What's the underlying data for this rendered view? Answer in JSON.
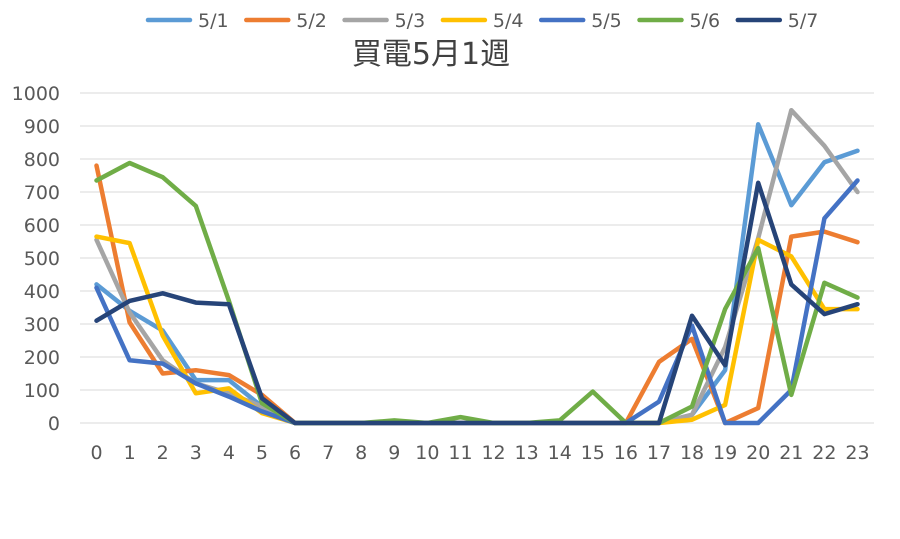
{
  "chart_data": {
    "type": "line",
    "title": "買電5月1週",
    "xlabel": "",
    "ylabel": "",
    "categories": [
      "0",
      "1",
      "2",
      "3",
      "4",
      "5",
      "6",
      "7",
      "8",
      "9",
      "10",
      "11",
      "12",
      "13",
      "14",
      "15",
      "16",
      "17",
      "18",
      "19",
      "20",
      "21",
      "22",
      "23"
    ],
    "yticks": [
      "0",
      "100",
      "200",
      "300",
      "400",
      "500",
      "600",
      "700",
      "800",
      "900",
      "1000"
    ],
    "ylim": [
      0,
      1000
    ],
    "grid": true,
    "legend_position": "top",
    "series": [
      {
        "name": "5/1",
        "color": "#5B9BD5",
        "values": [
          420,
          340,
          280,
          130,
          130,
          50,
          0,
          0,
          0,
          0,
          0,
          0,
          0,
          0,
          0,
          0,
          0,
          0,
          25,
          160,
          905,
          660,
          790,
          825
        ]
      },
      {
        "name": "5/2",
        "color": "#ED7D31",
        "values": [
          780,
          305,
          150,
          160,
          145,
          85,
          0,
          0,
          0,
          0,
          0,
          0,
          0,
          0,
          0,
          0,
          0,
          185,
          255,
          0,
          45,
          565,
          580,
          548
        ]
      },
      {
        "name": "5/3",
        "color": "#A5A5A5",
        "values": [
          555,
          335,
          190,
          120,
          90,
          50,
          0,
          0,
          0,
          0,
          0,
          0,
          0,
          0,
          0,
          0,
          0,
          0,
          25,
          230,
          560,
          948,
          840,
          700
        ]
      },
      {
        "name": "5/4",
        "color": "#FFC000",
        "values": [
          565,
          545,
          265,
          90,
          105,
          30,
          0,
          0,
          0,
          0,
          0,
          0,
          0,
          0,
          0,
          0,
          0,
          0,
          10,
          55,
          555,
          505,
          345,
          345
        ]
      },
      {
        "name": "5/5",
        "color": "#4472C4",
        "values": [
          410,
          190,
          180,
          120,
          80,
          35,
          0,
          0,
          0,
          0,
          0,
          0,
          0,
          0,
          0,
          0,
          0,
          65,
          295,
          0,
          0,
          100,
          620,
          735
        ]
      },
      {
        "name": "5/6",
        "color": "#70AD47",
        "values": [
          735,
          788,
          745,
          658,
          370,
          60,
          0,
          0,
          0,
          8,
          0,
          18,
          0,
          0,
          8,
          95,
          0,
          0,
          50,
          345,
          530,
          85,
          425,
          380
        ]
      },
      {
        "name": "5/7",
        "color": "#264478",
        "values": [
          310,
          370,
          393,
          365,
          360,
          75,
          0,
          0,
          0,
          0,
          0,
          0,
          0,
          0,
          0,
          0,
          0,
          0,
          325,
          175,
          728,
          420,
          330,
          360
        ]
      }
    ]
  }
}
